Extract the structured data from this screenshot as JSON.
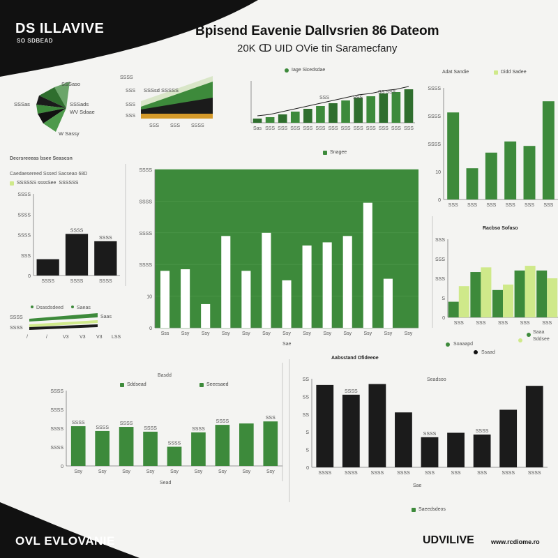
{
  "header": {
    "brand_top": "DS ILLAVIVE",
    "brand_sub": "SO SDBEAD",
    "title": "Bpisend Eavenie Dallvsrien 86 Dateom",
    "subtitle": "20K ↀ UID OVie tin Saramecfany",
    "brand_bottom_left": "OVL EVLOVANIE",
    "brand_bottom_right": "UDVILIVE",
    "url_bottom_right": "www.rcdiome.ro"
  },
  "colors": {
    "green": "#3d8a3b",
    "dark_green": "#2f6e2e",
    "light_green": "#cfe98a",
    "black": "#1b1b1b",
    "white": "#ffffff",
    "orange": "#d59a2a"
  },
  "legends": {
    "top_mid": "Iage Sicedsdae",
    "top_right_a": "Adat Sandie",
    "top_right_b": "Didd Sadee",
    "main_center": "Snagee",
    "left_header": "Decrsreeeas bsee Seascsn",
    "left_sub_a": "Caedaesereed Sssed Sacseao 68D",
    "left_sub_b": "SSSSSS ssssSee",
    "left_sub_c": "SSSSSS",
    "mid_right_title": "Racbso Sofaso",
    "bottom_center_title": "Aabsstand Ofideeoe",
    "bottom_left_top": "Basdd",
    "bottom_left_a": "Sddsead",
    "bottom_left_b": "Seeesaed",
    "bottom_right_title": "Seadsoo",
    "bottom_right_legend": "Saeedsdeos",
    "mini_line_a": "Dsasdsdeed",
    "mini_line_b": "Saeas",
    "mini_line_c": "Saas",
    "right_dots_a": "Soaaapd",
    "right_dots_b": "Saaa",
    "right_dots_c": "Sddsee",
    "right_dots_d": "Ssaad",
    "fan_top": "SSSaso",
    "fan_left": "SSSas",
    "fan_a": "SSSads",
    "fan_b": "WV Sdaae",
    "fan_c": "W Sassy",
    "area_label": "SSSsd SSSSS",
    "main_xlabel": "Sae",
    "bottom_left_xlabel": "Sead",
    "bottom_right_xlabel": "Sae"
  },
  "chart_data": [
    {
      "id": "main",
      "type": "bar",
      "categories": [
        "Sss",
        "Ssy",
        "Ssy",
        "Ssy",
        "Ssy",
        "Ssy",
        "Ssy",
        "Ssy",
        "Ssy",
        "Ssy",
        "Ssy",
        "Ssy",
        "Ssy"
      ],
      "values": [
        36,
        37,
        15,
        58,
        36,
        60,
        30,
        52,
        54,
        58,
        79,
        31,
        0
      ],
      "ylim": [
        0,
        100
      ],
      "ytick_labels": [
        "0",
        "10",
        "SSSS",
        "SSSS",
        "SSSS",
        "SSSS"
      ],
      "grid": true,
      "background": "green"
    },
    {
      "id": "top-mid-area",
      "type": "bar",
      "categories": [
        "Sas",
        "SSS",
        "SSS",
        "SSS",
        "SSS",
        "SSS",
        "SSS",
        "SSS",
        "SSS",
        "SSS",
        "SSS",
        "SSS",
        "SSS"
      ],
      "values": [
        3,
        4,
        6,
        8,
        10,
        12,
        14,
        16,
        18,
        19,
        21,
        22,
        24
      ],
      "ytick_labels": [
        "SSS",
        "SSS",
        "SSS"
      ],
      "annotations": [
        "SSS",
        "SSS",
        "SS SSS"
      ],
      "ylim": [
        0,
        30
      ]
    },
    {
      "id": "top-right",
      "type": "bar",
      "categories": [
        "SSS",
        "SSS",
        "SSS",
        "SSS",
        "SSS",
        "SSS"
      ],
      "values": [
        78,
        28,
        42,
        52,
        48,
        88
      ],
      "ytick_labels": [
        "0",
        "10",
        "SSSS",
        "SSSS",
        "SSSS"
      ],
      "ylim": [
        0,
        100
      ]
    },
    {
      "id": "left-black",
      "type": "bar",
      "categories": [
        "SSSS",
        "SSSS",
        "SSSS"
      ],
      "values": [
        20,
        51,
        42
      ],
      "data_labels": [
        "",
        "SSSS",
        "SSSS"
      ],
      "ytick_labels": [
        "0",
        "SSS",
        "SSSS",
        "SSSS",
        "SSSS"
      ],
      "ylim": [
        0,
        100
      ]
    },
    {
      "id": "mid-right",
      "type": "bar",
      "categories": [
        "SSS",
        "SSS",
        "SSS",
        "SSS",
        "SSS"
      ],
      "series": [
        {
          "values": [
            20,
            58,
            35,
            60,
            60
          ]
        },
        {
          "values": [
            40,
            64,
            42,
            66,
            50
          ]
        }
      ],
      "ytick_labels": [
        "0",
        "S",
        "SSS",
        "SSS",
        "SSS"
      ],
      "ylim": [
        0,
        100
      ]
    },
    {
      "id": "bottom-left",
      "type": "bar",
      "categories": [
        "Ssy",
        "Ssy",
        "Ssy",
        "Ssy",
        "Ssy",
        "Ssy",
        "Ssy",
        "Ssy",
        "Ssy"
      ],
      "values": [
        58,
        51,
        57,
        50,
        28,
        49,
        60,
        62,
        65
      ],
      "data_labels": [
        "SSSS",
        "SSSS",
        "SSSS",
        "SSSS",
        "SSSS",
        "SSSS",
        "SSSS",
        "",
        "SSS"
      ],
      "ytick_labels": [
        "0",
        "SSSS",
        "SSSS",
        "SSSS",
        "SSSS"
      ],
      "ylim": [
        0,
        110
      ]
    },
    {
      "id": "bottom-right",
      "type": "bar",
      "categories": [
        "SSSS",
        "SSSS",
        "SSSS",
        "SSSS",
        "SSS",
        "SSS",
        "SSS",
        "SSSS",
        "SSSS"
      ],
      "values": [
        93,
        82,
        94,
        62,
        34,
        39,
        37,
        65,
        92
      ],
      "data_labels": [
        "",
        "SSSS",
        "",
        "",
        "SSSS",
        "",
        "SSSS",
        "",
        ""
      ],
      "ytick_labels": [
        "0",
        "S",
        "S",
        "SS",
        "SS",
        "SS"
      ],
      "ylim": [
        0,
        100
      ]
    }
  ]
}
